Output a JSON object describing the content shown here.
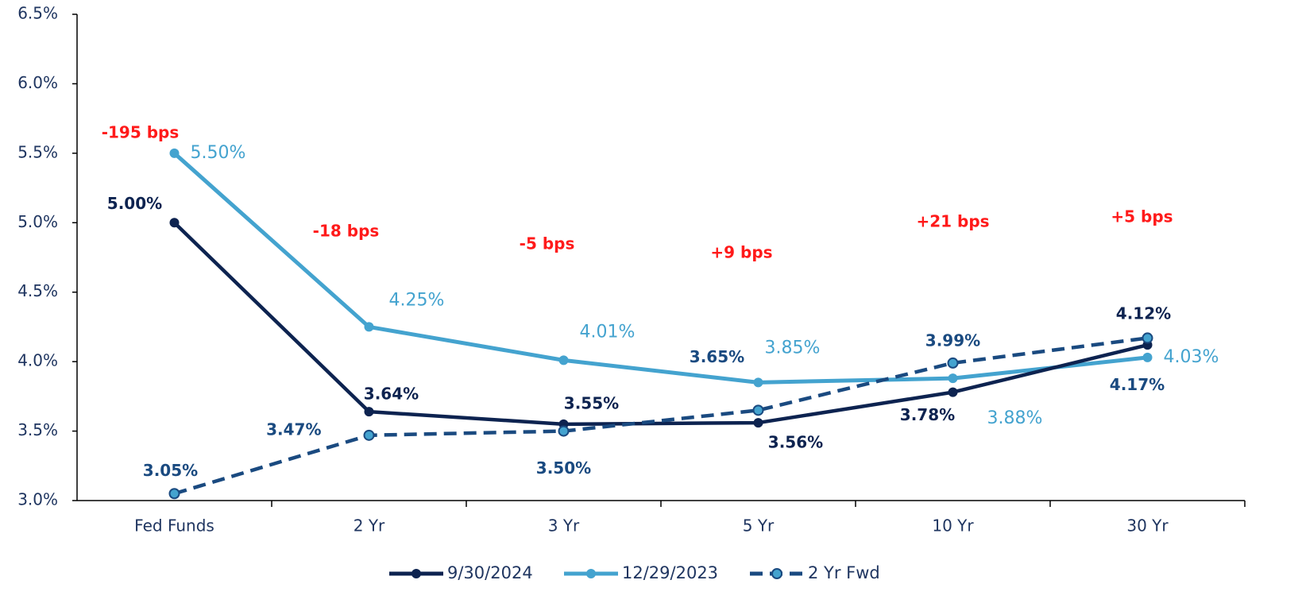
{
  "chart_data": {
    "type": "line",
    "categories": [
      "Fed Funds",
      "2 Yr",
      "3 Yr",
      "5 Yr",
      "10 Yr",
      "30 Yr"
    ],
    "series": [
      {
        "name": "9/30/2024",
        "color": "#0d2350",
        "values": [
          5.0,
          3.64,
          3.55,
          3.56,
          3.78,
          4.12
        ],
        "value_labels": [
          "5.00%",
          "3.64%",
          "3.55%",
          "3.56%",
          "3.78%",
          "4.12%"
        ]
      },
      {
        "name": "12/29/2023",
        "color": "#44a3cf",
        "values": [
          5.5,
          4.25,
          4.01,
          3.85,
          3.88,
          4.03
        ],
        "value_labels": [
          "5.50%",
          "4.25%",
          "4.01%",
          "3.85%",
          "3.88%",
          "4.03%"
        ]
      },
      {
        "name": "2 Yr Fwd",
        "color": "#1a4a80",
        "dashed": true,
        "values": [
          3.05,
          3.47,
          3.5,
          3.65,
          3.99,
          4.17
        ],
        "value_labels": [
          "3.05%",
          "3.47%",
          "3.50%",
          "3.65%",
          "3.99%",
          "4.17%"
        ]
      }
    ],
    "annotations": [
      "-195 bps",
      "-18 bps",
      "-5 bps",
      "+9 bps",
      "+21 bps",
      "+5 bps"
    ],
    "ylim": [
      3.0,
      6.5
    ],
    "yticks": [
      {
        "value": 3.0,
        "label": "3.0%"
      },
      {
        "value": 3.5,
        "label": "3.5%"
      },
      {
        "value": 4.0,
        "label": "4.0%"
      },
      {
        "value": 4.5,
        "label": "4.5%"
      },
      {
        "value": 5.0,
        "label": "5.0%"
      },
      {
        "value": 5.5,
        "label": "5.5%"
      },
      {
        "value": 6.0,
        "label": "6.0%"
      },
      {
        "value": 6.5,
        "label": "6.5%"
      }
    ],
    "grid": false,
    "legend": "bottom"
  }
}
